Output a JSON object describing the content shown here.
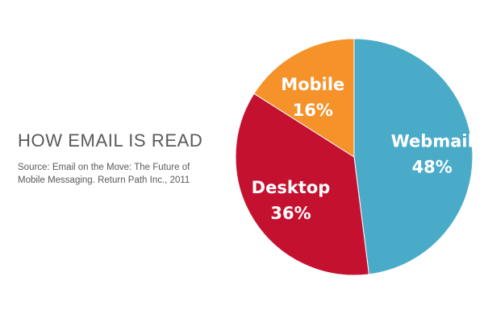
{
  "page": {
    "title": "HOW EMAIL IS READ",
    "source": "Source: Email on the Move: The Future of Mobile Messaging. Return Path Inc., 2011"
  },
  "colors": {
    "webmail": "#4aabc8",
    "desktop": "#c4112f",
    "mobile": "#f5922a",
    "text": "#595959"
  },
  "chart_data": {
    "type": "pie",
    "title": "HOW EMAIL IS READ",
    "slices": [
      {
        "label": "Webmail",
        "value": 48,
        "value_label": "48%",
        "color": "#4aabc8"
      },
      {
        "label": "Desktop",
        "value": 36,
        "value_label": "36%",
        "color": "#c4112f"
      },
      {
        "label": "Mobile",
        "value": 16,
        "value_label": "16%",
        "color": "#f5922a"
      }
    ],
    "start_angle": "12 o'clock",
    "direction": "clockwise",
    "legend": "none (labels on slices)"
  }
}
